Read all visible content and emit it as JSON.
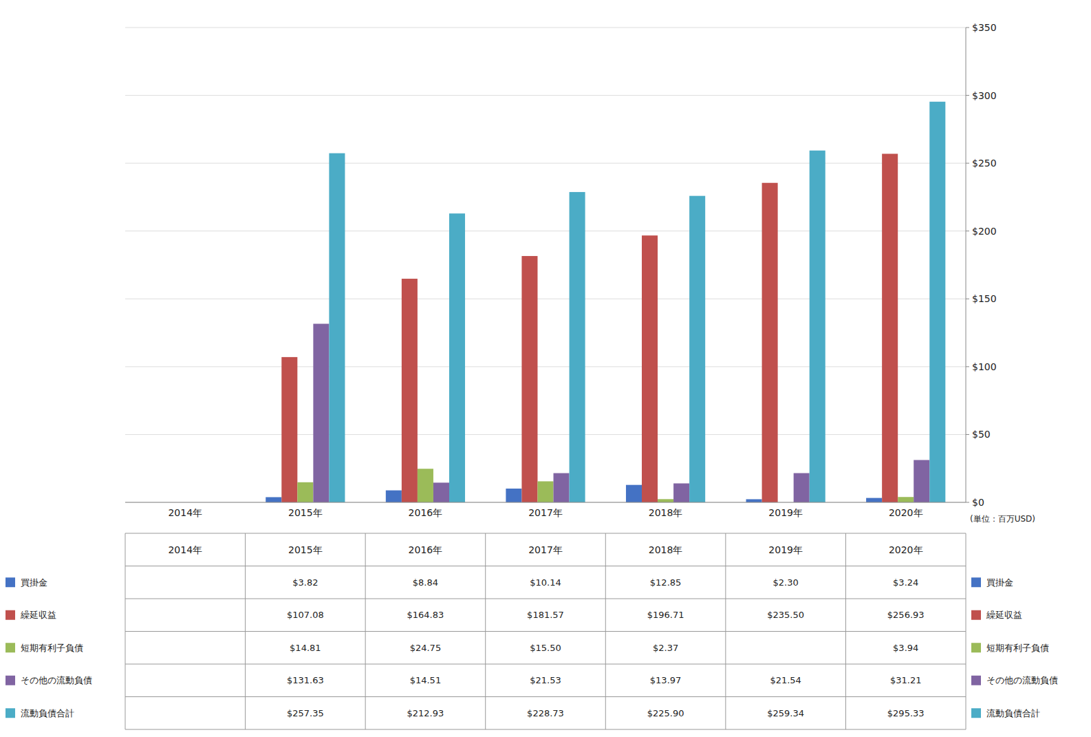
{
  "chart_data": {
    "type": "bar",
    "y_label": "(単位：百万USD)",
    "categories": [
      "2014年",
      "2015年",
      "2016年",
      "2017年",
      "2018年",
      "2019年",
      "2020年"
    ],
    "series": [
      {
        "name": "買掛金",
        "color": "#4472C4",
        "values": [
          0,
          3.82,
          8.84,
          10.14,
          12.85,
          2.3,
          3.24
        ],
        "value_labels": [
          null,
          "$3.82",
          "$8.84",
          "$10.14",
          "$12.85",
          "$2.30",
          "$3.24"
        ]
      },
      {
        "name": "繰延収益",
        "color": "#C0504D",
        "values": [
          0,
          107.08,
          164.83,
          181.57,
          196.71,
          235.5,
          256.93
        ],
        "value_labels": [
          null,
          "$107.08",
          "$164.83",
          "$181.57",
          "$196.71",
          "$235.50",
          "$256.93"
        ]
      },
      {
        "name": "短期有利子負債",
        "color": "#9BBB59",
        "values": [
          0,
          14.81,
          24.75,
          15.5,
          2.37,
          0,
          3.94
        ],
        "value_labels": [
          null,
          "$14.81",
          "$24.75",
          "$15.50",
          "$2.37",
          null,
          "$3.94"
        ]
      },
      {
        "name": "その他の流動負債",
        "color": "#8064A2",
        "values": [
          0,
          131.63,
          14.51,
          21.53,
          13.97,
          21.54,
          31.21
        ],
        "value_labels": [
          null,
          "$131.63",
          "$14.51",
          "$21.53",
          "$13.97",
          "$21.54",
          "$31.21"
        ]
      },
      {
        "name": "流動負債合計",
        "color": "#4BACC6",
        "values": [
          0,
          257.35,
          212.93,
          228.73,
          225.9,
          259.34,
          295.33
        ],
        "value_labels": [
          null,
          "$257.35",
          "$212.93",
          "$228.73",
          "$225.90",
          "$259.34",
          "$295.33"
        ]
      }
    ],
    "ylim": [
      0,
      350
    ],
    "yticks": [
      {
        "value": 0,
        "label": "$0"
      },
      {
        "value": 50,
        "label": "$50"
      },
      {
        "value": 100,
        "label": "$100"
      },
      {
        "value": 150,
        "label": "$150"
      },
      {
        "value": 200,
        "label": "$200"
      },
      {
        "value": 250,
        "label": "$250"
      },
      {
        "value": 300,
        "label": "$300"
      },
      {
        "value": 350,
        "label": "$350"
      }
    ],
    "grid": true,
    "data_labels": true
  }
}
